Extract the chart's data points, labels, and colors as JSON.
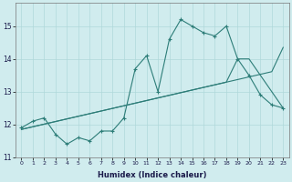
{
  "xlabel": "Humidex (Indice chaleur)",
  "x_hours": [
    0,
    1,
    2,
    3,
    4,
    5,
    6,
    7,
    8,
    9,
    10,
    11,
    12,
    13,
    14,
    15,
    16,
    17,
    18,
    19,
    20,
    21,
    22,
    23
  ],
  "line1_y": [
    11.9,
    12.1,
    12.2,
    11.7,
    11.4,
    11.6,
    11.5,
    11.8,
    11.8,
    12.2,
    13.7,
    14.1,
    13.0,
    14.6,
    15.2,
    15.0,
    14.8,
    14.7,
    15.0,
    14.0,
    13.5,
    12.9,
    12.6,
    12.5
  ],
  "line2_y": [
    11.85,
    11.93,
    12.01,
    12.09,
    12.17,
    12.25,
    12.33,
    12.41,
    12.49,
    12.57,
    12.65,
    12.73,
    12.81,
    12.89,
    12.97,
    13.05,
    13.13,
    13.21,
    13.29,
    13.37,
    13.45,
    13.53,
    13.61,
    14.35
  ],
  "line3_y": [
    11.85,
    11.93,
    12.01,
    12.09,
    12.17,
    12.25,
    12.33,
    12.41,
    12.49,
    12.57,
    12.65,
    12.73,
    12.81,
    12.89,
    12.97,
    13.05,
    13.13,
    13.21,
    13.29,
    14.0,
    14.0,
    13.5,
    13.0,
    12.5
  ],
  "line_color": "#2d7d78",
  "bg_color": "#d0ecee",
  "grid_color": "#b0d8da",
  "ylim": [
    11.0,
    15.7
  ],
  "yticks": [
    11,
    12,
    13,
    14,
    15
  ],
  "xticks": [
    0,
    1,
    2,
    3,
    4,
    5,
    6,
    7,
    8,
    9,
    10,
    11,
    12,
    13,
    14,
    15,
    16,
    17,
    18,
    19,
    20,
    21,
    22,
    23
  ]
}
